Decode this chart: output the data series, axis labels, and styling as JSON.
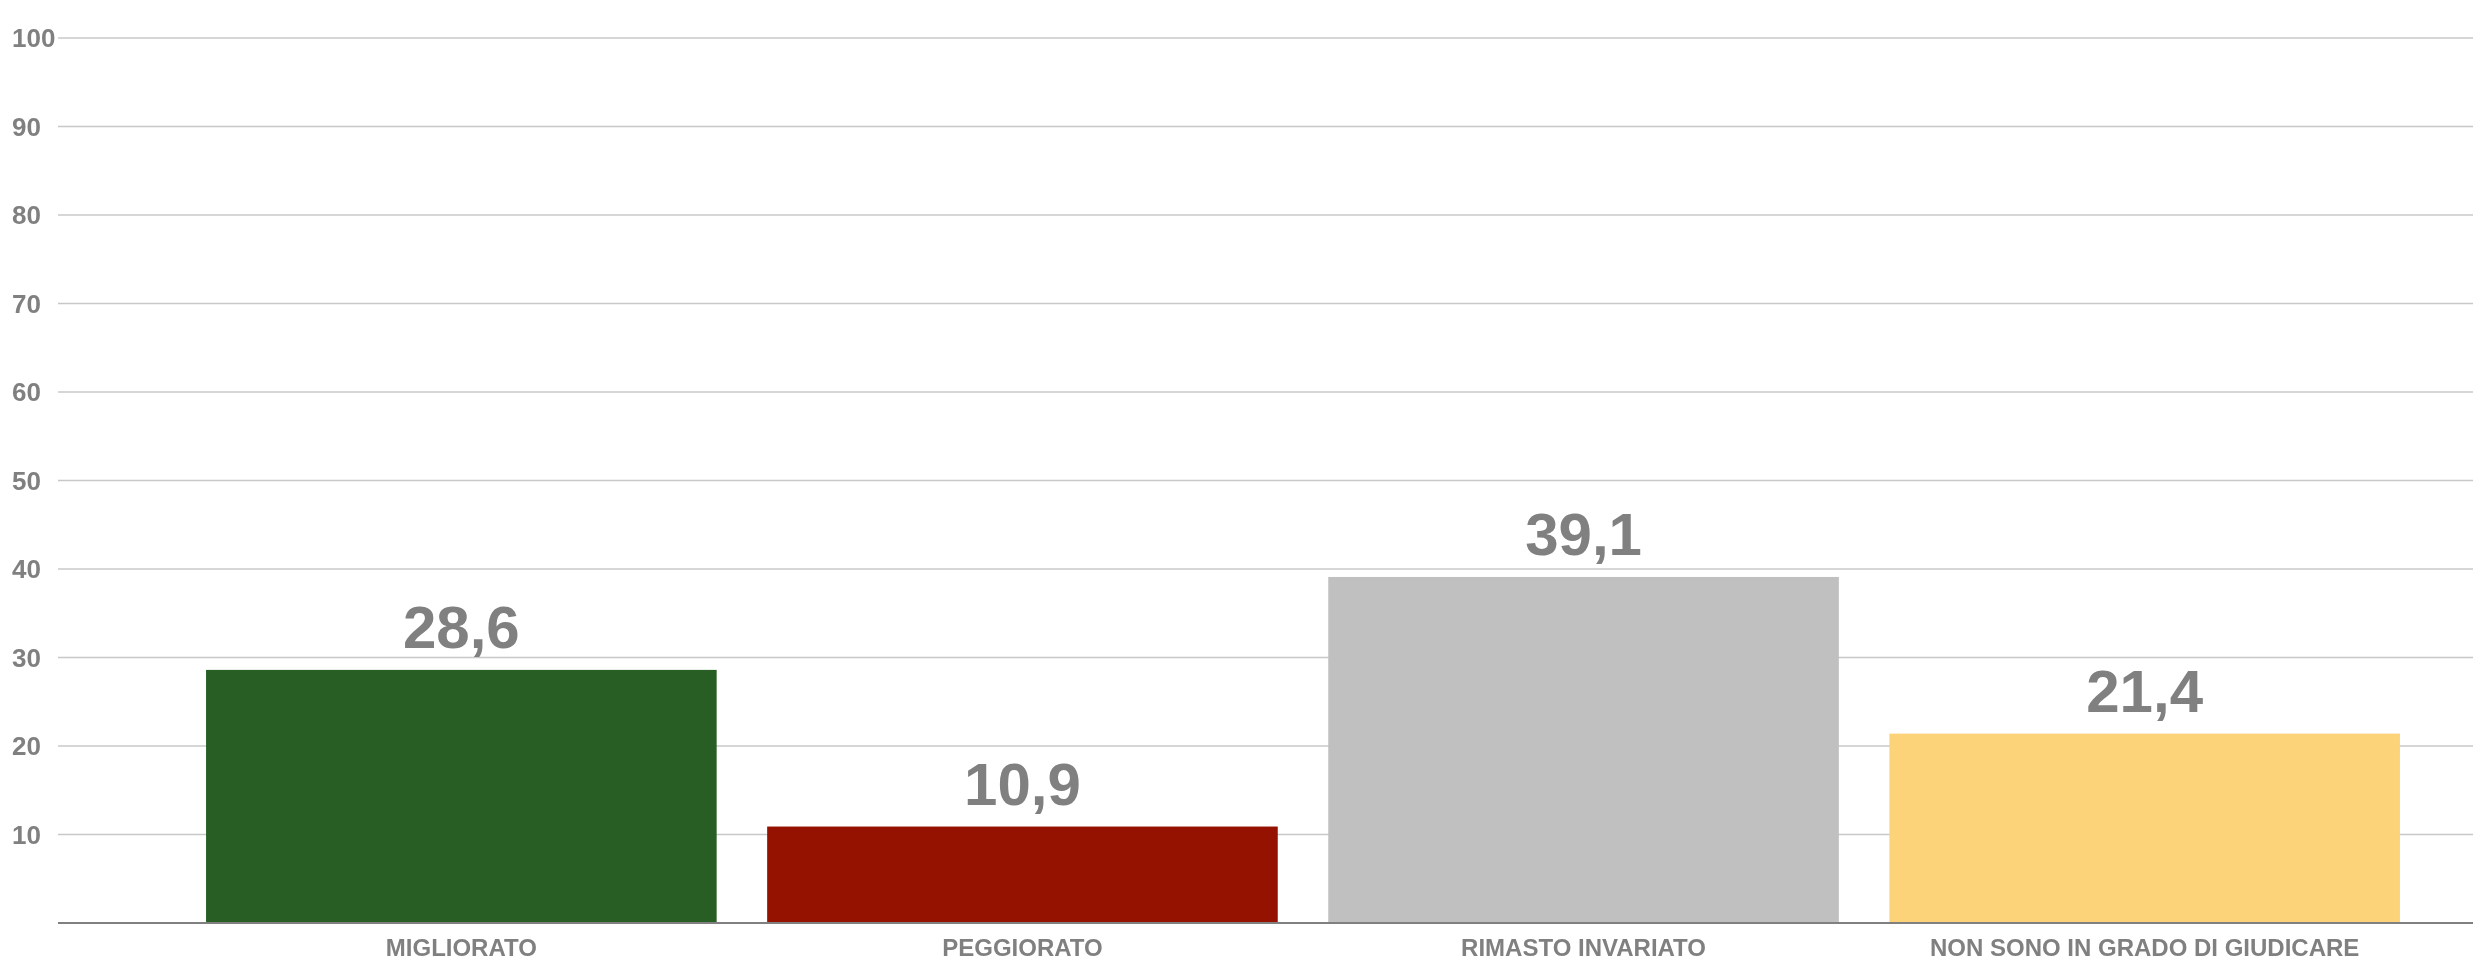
{
  "chart_data": {
    "type": "bar",
    "categories": [
      "MIGLIORATO",
      "PEGGIORATO",
      "RIMASTO INVARIATO",
      "NON SONO IN GRADO DI GIUDICARE"
    ],
    "values": [
      28.6,
      10.9,
      39.1,
      21.4
    ],
    "colors": [
      "#285e24",
      "#951100",
      "#c0c0c0",
      "#fdd37a"
    ],
    "value_labels": [
      "28,6",
      "10,9",
      "39,1",
      "21,4"
    ],
    "ylim": [
      0,
      100
    ],
    "yticks": [
      10,
      20,
      30,
      40,
      50,
      60,
      70,
      80,
      90,
      100
    ],
    "grid": "y"
  }
}
